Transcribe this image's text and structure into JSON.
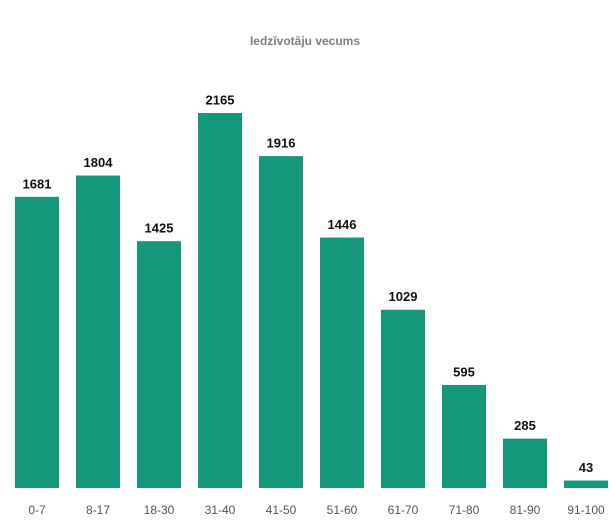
{
  "chart_data": {
    "type": "bar",
    "title": "Iedzīvotāju vecums",
    "categories": [
      "0-7",
      "8-17",
      "18-30",
      "31-40",
      "41-50",
      "51-60",
      "61-70",
      "71-80",
      "81-90",
      "91-100"
    ],
    "values": [
      1681,
      1804,
      1425,
      2165,
      1916,
      1446,
      1029,
      595,
      285,
      43
    ],
    "color": "#15977b"
  }
}
